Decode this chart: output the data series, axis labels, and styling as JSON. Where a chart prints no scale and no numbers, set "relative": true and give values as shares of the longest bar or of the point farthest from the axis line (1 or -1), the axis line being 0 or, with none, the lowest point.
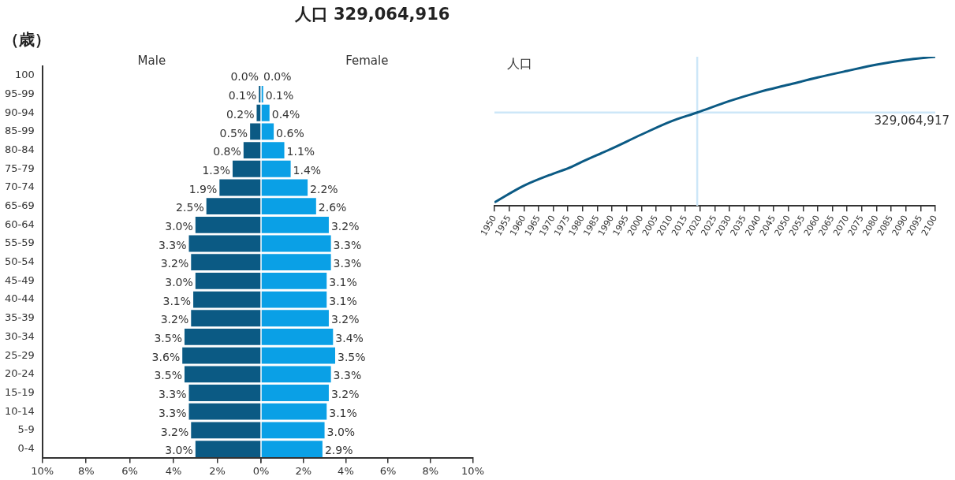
{
  "chart_data": [
    {
      "type": "bar",
      "orientation": "horizontal",
      "ylabel": "（歳）",
      "categories": [
        "100",
        "95-99",
        "90-94",
        "85-99",
        "80-84",
        "75-79",
        "70-74",
        "65-69",
        "60-64",
        "55-59",
        "50-54",
        "45-49",
        "40-44",
        "35-39",
        "30-34",
        "25-29",
        "20-24",
        "15-19",
        "10-14",
        "5-9",
        "0-4"
      ],
      "series": [
        {
          "name": "Male",
          "color": "#0b5a84",
          "values": [
            0.0,
            0.1,
            0.2,
            0.5,
            0.8,
            1.3,
            1.9,
            2.5,
            3.0,
            3.3,
            3.2,
            3.0,
            3.1,
            3.2,
            3.5,
            3.6,
            3.5,
            3.3,
            3.3,
            3.2,
            3.0
          ],
          "value_labels": [
            "0.0%",
            "0.1%",
            "0.2%",
            "0.5%",
            "0.8%",
            "1.3%",
            "1.9%",
            "2.5%",
            "3.0%",
            "3.3%",
            "3.2%",
            "3.0%",
            "3.1%",
            "3.2%",
            "3.5%",
            "3.6%",
            "3.5%",
            "3.3%",
            "3.3%",
            "3.2%",
            "3.0%"
          ]
        }
      ],
      "xlim": [
        10,
        0
      ],
      "xticks": [
        {
          "value": 10,
          "label": "10%"
        },
        {
          "value": 8,
          "label": "8%"
        },
        {
          "value": 6,
          "label": "6%"
        },
        {
          "value": 4,
          "label": "4%"
        },
        {
          "value": 2,
          "label": "2%"
        },
        {
          "value": 0,
          "label": "0%"
        }
      ]
    },
    {
      "type": "bar",
      "orientation": "horizontal",
      "tick_labels": "x",
      "title": "人口 329,064,916",
      "categories": [
        null,
        null,
        null,
        null,
        null,
        null,
        null,
        null,
        null,
        null,
        null,
        null,
        null,
        null,
        null,
        null,
        null,
        null,
        null,
        null,
        null
      ],
      "series": [
        {
          "name": "Female",
          "color": "#0aa0e6",
          "values": [
            0.0,
            0.1,
            0.4,
            0.6,
            1.1,
            1.4,
            2.2,
            2.6,
            3.2,
            3.3,
            3.3,
            3.1,
            3.1,
            3.2,
            3.4,
            3.5,
            3.3,
            3.2,
            3.1,
            3.0,
            2.9
          ],
          "value_labels": [
            "0.0%",
            "0.1%",
            "0.4%",
            "0.6%",
            "1.1%",
            "1.4%",
            "2.2%",
            "2.6%",
            "3.2%",
            "3.3%",
            "3.3%",
            "3.1%",
            "3.1%",
            "3.2%",
            "3.4%",
            "3.5%",
            "3.3%",
            "3.2%",
            "3.1%",
            "3.0%",
            "2.9%"
          ]
        }
      ],
      "xlim": [
        0,
        10
      ],
      "xticks": [
        {
          "value": 0,
          "label": null
        },
        {
          "value": 2,
          "label": "2%"
        },
        {
          "value": 4,
          "label": "4%"
        },
        {
          "value": 6,
          "label": "6%"
        },
        {
          "value": 8,
          "label": "8%"
        },
        {
          "value": 10,
          "label": "10%"
        }
      ]
    },
    {
      "type": "line",
      "relative": true,
      "ylabel": "人口",
      "x": [
        1950,
        1960,
        1970,
        1975,
        1980,
        1990,
        2000,
        2010,
        2019,
        2030,
        2040,
        2050,
        2060,
        2070,
        2080,
        2090,
        2100
      ],
      "series": [
        {
          "color": "#0b5a84",
          "values": [
            0.023,
            0.135,
            0.216,
            0.251,
            0.297,
            0.385,
            0.478,
            0.566,
            0.626,
            0.703,
            0.763,
            0.812,
            0.861,
            0.905,
            0.947,
            0.979,
            1
          ]
        }
      ],
      "xlim": [
        1950,
        2100
      ],
      "xticks": [
        1950,
        1955,
        1960,
        1965,
        1970,
        1975,
        1980,
        1985,
        1990,
        1995,
        2000,
        2005,
        2010,
        2015,
        2020,
        2025,
        2030,
        2035,
        2040,
        2045,
        2050,
        2055,
        2060,
        2065,
        2070,
        2075,
        2080,
        2085,
        2090,
        2095,
        2100
      ],
      "ref_lines": [
        {
          "axis": "x",
          "value": 2019,
          "color": "#cde7f8"
        },
        {
          "axis": "y",
          "value": 0.626,
          "color": "#cde7f8"
        }
      ],
      "annotations": [
        "329,064,917"
      ]
    }
  ]
}
